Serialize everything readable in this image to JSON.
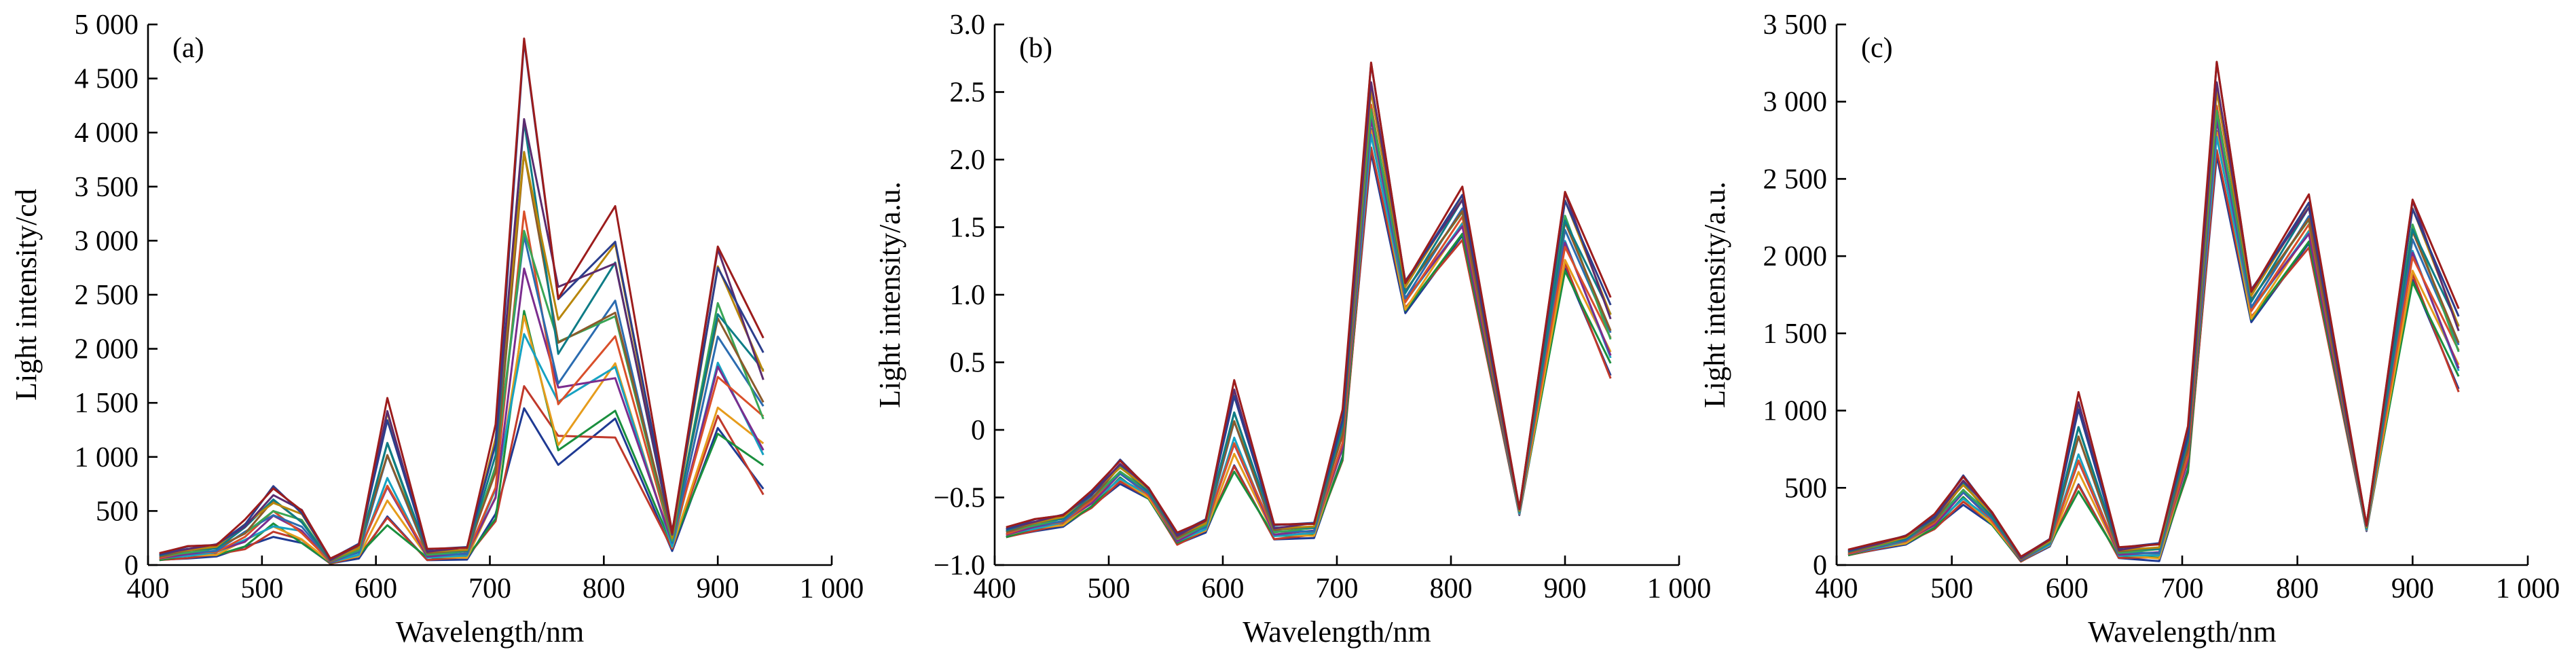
{
  "palette": [
    "#1f3a93",
    "#c0392b",
    "#1a8f3e",
    "#e69c1c",
    "#17a2c2",
    "#7b2d8e",
    "#d94f2a",
    "#2b6cb0",
    "#3aa655",
    "#8b5a2b",
    "#0e7c86",
    "#b8860b",
    "#5b2c6f",
    "#2c3e8c",
    "#9c1c1c"
  ],
  "chart_data": [
    {
      "type": "line",
      "panel_label": "(a)",
      "xlabel": "Wavelength/nm",
      "ylabel": "Light intensity/cd",
      "xlim": [
        400,
        1000
      ],
      "ylim": [
        0,
        5000
      ],
      "xticks": [
        400,
        500,
        600,
        700,
        800,
        900,
        1000
      ],
      "xtick_labels": [
        "400",
        "500",
        "600",
        "700",
        "800",
        "900",
        "1 000"
      ],
      "yticks": [
        0,
        500,
        1000,
        1500,
        2000,
        2500,
        3000,
        3500,
        4000,
        4500,
        5000
      ],
      "ytick_labels": [
        "0",
        "500",
        "1 000",
        "1 500",
        "2 000",
        "2 500",
        "3 000",
        "3 500",
        "4 000",
        "4 500",
        "5 000"
      ],
      "grid": false,
      "x": [
        410,
        435,
        460,
        485,
        510,
        535,
        560,
        585,
        610,
        645,
        680,
        705,
        730,
        760,
        810,
        860,
        900,
        940
      ],
      "series_low": [
        40,
        60,
        75,
        140,
        260,
        170,
        12,
        60,
        280,
        45,
        50,
        350,
        1450,
        830,
        1150,
        130,
        1050,
        650
      ],
      "series_high": [
        110,
        175,
        200,
        420,
        730,
        540,
        60,
        200,
        1600,
        150,
        175,
        1300,
        4880,
        2700,
        3320,
        310,
        3120,
        2100
      ],
      "series_count": 15
    },
    {
      "type": "line",
      "panel_label": "(b)",
      "xlabel": "Wavelength/nm",
      "ylabel": "Light intensity/a.u.",
      "xlim": [
        400,
        1000
      ],
      "ylim": [
        -1.0,
        3.0
      ],
      "xticks": [
        400,
        500,
        600,
        700,
        800,
        900,
        1000
      ],
      "xtick_labels": [
        "400",
        "500",
        "600",
        "700",
        "800",
        "900",
        "1 000"
      ],
      "yticks": [
        -1.0,
        -0.5,
        0,
        0.5,
        1.0,
        1.5,
        2.0,
        2.5,
        3.0
      ],
      "ytick_labels": [
        "−1.0",
        "−0.5",
        "0",
        "0.5",
        "1.0",
        "1.5",
        "2.0",
        "2.5",
        "3.0"
      ],
      "grid": false,
      "x": [
        410,
        435,
        460,
        485,
        510,
        535,
        560,
        585,
        610,
        645,
        680,
        705,
        730,
        760,
        810,
        860,
        900,
        940
      ],
      "series_low": [
        -0.8,
        -0.75,
        -0.72,
        -0.58,
        -0.4,
        -0.52,
        -0.85,
        -0.76,
        -0.36,
        -0.81,
        -0.8,
        -0.25,
        2.05,
        0.85,
        1.4,
        -0.63,
        1.12,
        0.38
      ],
      "series_high": [
        -0.72,
        -0.66,
        -0.62,
        -0.45,
        -0.22,
        -0.42,
        -0.76,
        -0.66,
        0.4,
        -0.7,
        -0.68,
        0.15,
        2.72,
        1.12,
        1.8,
        -0.58,
        1.82,
        0.98
      ],
      "series_count": 15
    },
    {
      "type": "line",
      "panel_label": "(c)",
      "xlabel": "Wavelength/nm",
      "ylabel": "Light intensity/a.u.",
      "xlim": [
        400,
        1000
      ],
      "ylim": [
        0,
        3500
      ],
      "xticks": [
        400,
        500,
        600,
        700,
        800,
        900,
        1000
      ],
      "xtick_labels": [
        "400",
        "500",
        "600",
        "700",
        "800",
        "900",
        "1 000"
      ],
      "yticks": [
        0,
        500,
        1000,
        1500,
        2000,
        2500,
        3000,
        3500
      ],
      "ytick_labels": [
        "0",
        "500",
        "1 000",
        "1 500",
        "2 000",
        "2 500",
        "3 000",
        "3 500"
      ],
      "grid": false,
      "x": [
        410,
        435,
        460,
        485,
        510,
        535,
        560,
        585,
        610,
        645,
        680,
        705,
        730,
        760,
        810,
        860,
        900,
        940
      ],
      "series_low": [
        60,
        100,
        130,
        230,
        390,
        250,
        22,
        120,
        430,
        45,
        25,
        580,
        2650,
        1560,
        2050,
        220,
        1780,
        1120
      ],
      "series_high": [
        100,
        145,
        195,
        330,
        580,
        350,
        55,
        170,
        1150,
        115,
        150,
        900,
        3260,
        1800,
        2400,
        260,
        2420,
        1660
      ],
      "series_count": 15
    }
  ]
}
